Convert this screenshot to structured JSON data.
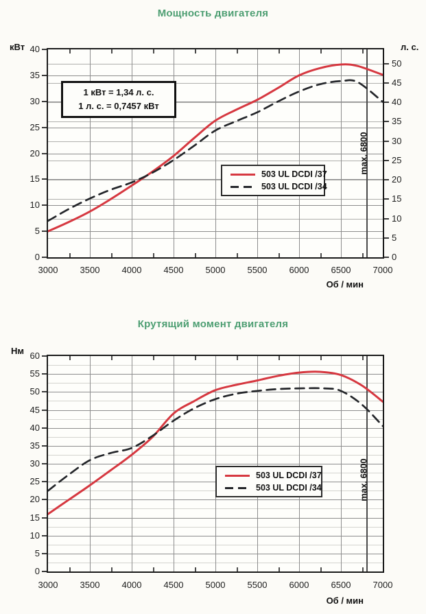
{
  "accent_colors": {
    "title_green": "#4d9e72",
    "curve_red": "#d63840",
    "curve_dark": "#24262a"
  },
  "chart_data": [
    {
      "type": "line",
      "title": "Мощность двигателя",
      "ylabel_left": "кВт",
      "ylabel_right": "л. с.",
      "xlabel": "Об / мин",
      "x_range": [
        3000,
        7000
      ],
      "x_ticks": [
        3000,
        3500,
        4000,
        4500,
        5000,
        5500,
        6000,
        6500,
        7000
      ],
      "ylim": [
        0,
        40
      ],
      "y_ticks_left": [
        0,
        5,
        10,
        15,
        20,
        25,
        30,
        35,
        40
      ],
      "y_ticks_right_hp": [
        0,
        5,
        10,
        15,
        20,
        25,
        30,
        35,
        40,
        45,
        50
      ],
      "kw_per_hp": 0.7457,
      "grid": "on",
      "max_line": {
        "x": 6800,
        "label": "max. 6800"
      },
      "annotation": [
        "1 кВт = 1,34 л. с.",
        "1 л. с. = 0,7457 кВт"
      ],
      "series": [
        {
          "name": "503 UL DCDI /37",
          "style": "solid",
          "color": "#d63840",
          "points": [
            [
              3000,
              5
            ],
            [
              3250,
              6.8
            ],
            [
              3500,
              8.8
            ],
            [
              3750,
              11.2
            ],
            [
              4000,
              13.8
            ],
            [
              4250,
              16.5
            ],
            [
              4500,
              19.5
            ],
            [
              4750,
              23
            ],
            [
              5000,
              26.3
            ],
            [
              5250,
              28.4
            ],
            [
              5500,
              30.3
            ],
            [
              5750,
              32.6
            ],
            [
              6000,
              35
            ],
            [
              6250,
              36.4
            ],
            [
              6500,
              37.1
            ],
            [
              6700,
              36.8
            ],
            [
              7000,
              35.1
            ]
          ]
        },
        {
          "name": "503 UL DCDI /34",
          "style": "dashed",
          "color": "#24262a",
          "points": [
            [
              3000,
              7
            ],
            [
              3250,
              9.3
            ],
            [
              3500,
              11.3
            ],
            [
              3750,
              13
            ],
            [
              4000,
              14.4
            ],
            [
              4250,
              16.3
            ],
            [
              4500,
              18.7
            ],
            [
              4750,
              21.5
            ],
            [
              5000,
              24.4
            ],
            [
              5250,
              26.2
            ],
            [
              5500,
              27.9
            ],
            [
              5750,
              30
            ],
            [
              6000,
              31.9
            ],
            [
              6250,
              33.3
            ],
            [
              6500,
              33.9
            ],
            [
              6700,
              33.7
            ],
            [
              7000,
              29.9
            ]
          ]
        }
      ]
    },
    {
      "type": "line",
      "title": "Крутящий момент двигателя",
      "ylabel_left": "Нм",
      "xlabel": "Об / мин",
      "x_range": [
        3000,
        7000
      ],
      "x_ticks": [
        3000,
        3500,
        4000,
        4500,
        5000,
        5500,
        6000,
        6500,
        7000
      ],
      "ylim": [
        0,
        60
      ],
      "y_ticks_left": [
        0,
        5,
        10,
        15,
        20,
        25,
        30,
        35,
        40,
        45,
        50,
        55,
        60
      ],
      "minor_y_step": 2.5,
      "grid": "on",
      "max_line": {
        "x": 6800,
        "label": "max. 6800"
      },
      "series": [
        {
          "name": "503 UL DCDI /37",
          "style": "solid",
          "color": "#d63840",
          "points": [
            [
              3000,
              16
            ],
            [
              3250,
              20
            ],
            [
              3500,
              24
            ],
            [
              3750,
              28.2
            ],
            [
              4000,
              32.5
            ],
            [
              4250,
              37.5
            ],
            [
              4500,
              44
            ],
            [
              4750,
              47.5
            ],
            [
              5000,
              50.5
            ],
            [
              5250,
              52
            ],
            [
              5500,
              53.2
            ],
            [
              5750,
              54.5
            ],
            [
              6000,
              55.4
            ],
            [
              6250,
              55.6
            ],
            [
              6500,
              54.7
            ],
            [
              6750,
              51.8
            ],
            [
              7000,
              47.3
            ]
          ]
        },
        {
          "name": "503 UL DCDI /34",
          "style": "dashed",
          "color": "#24262a",
          "points": [
            [
              3000,
              22.5
            ],
            [
              3250,
              27
            ],
            [
              3500,
              31
            ],
            [
              3750,
              33
            ],
            [
              4000,
              34.4
            ],
            [
              4250,
              37.8
            ],
            [
              4500,
              42
            ],
            [
              4750,
              45.5
            ],
            [
              5000,
              48
            ],
            [
              5250,
              49.5
            ],
            [
              5500,
              50.3
            ],
            [
              5750,
              50.8
            ],
            [
              6000,
              51
            ],
            [
              6300,
              51
            ],
            [
              6500,
              50.3
            ],
            [
              6750,
              46.5
            ],
            [
              7000,
              40.5
            ]
          ]
        }
      ]
    }
  ]
}
